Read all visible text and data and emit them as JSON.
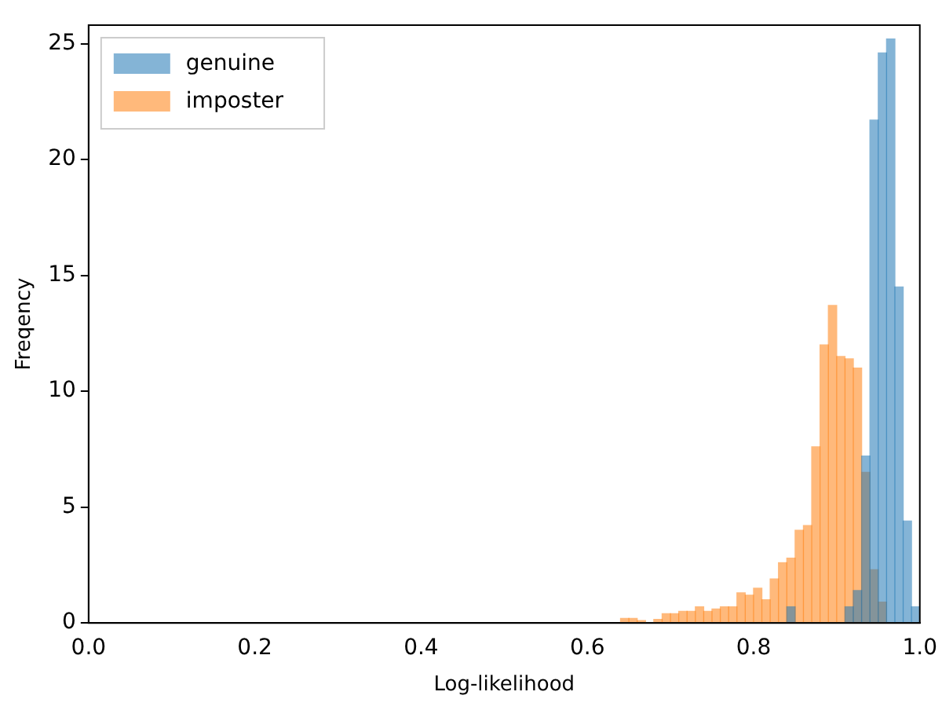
{
  "chart_data": {
    "type": "histogram",
    "xlabel": "Log-likelihood",
    "ylabel": "Freqency",
    "bins": [
      0.64,
      0.65,
      0.66,
      0.67,
      0.68,
      0.69,
      0.7,
      0.71,
      0.72,
      0.73,
      0.74,
      0.75,
      0.76,
      0.77,
      0.78,
      0.79,
      0.8,
      0.81,
      0.82,
      0.83,
      0.84,
      0.85,
      0.86,
      0.87,
      0.88,
      0.89,
      0.9,
      0.91,
      0.92,
      0.93,
      0.94,
      0.95,
      0.96,
      0.97,
      0.98,
      0.99,
      1.0
    ],
    "series": [
      {
        "name": "genuine",
        "color": "#1f77b4",
        "values": [
          0,
          0,
          0,
          0,
          0,
          0,
          0,
          0,
          0,
          0,
          0,
          0,
          0,
          0,
          0,
          0,
          0,
          0,
          0,
          0,
          0.7,
          0,
          0,
          0,
          0,
          0,
          0,
          0.7,
          1.4,
          7.2,
          21.7,
          24.6,
          25.2,
          14.5,
          4.4,
          0.7
        ]
      },
      {
        "name": "imposter",
        "color": "#ff7f0e",
        "values": [
          0.2,
          0.2,
          0.1,
          0,
          0.15,
          0.4,
          0.4,
          0.5,
          0.5,
          0.7,
          0.5,
          0.6,
          0.7,
          0.7,
          1.3,
          1.2,
          1.5,
          1.0,
          1.9,
          2.6,
          2.8,
          4.0,
          4.2,
          7.6,
          12.0,
          13.7,
          11.5,
          11.4,
          11.0,
          6.5,
          2.3,
          0.9,
          0,
          0,
          0,
          0
        ]
      }
    ],
    "xlim": [
      0,
      1
    ],
    "xticks": [
      {
        "value": 0,
        "label": "0.0"
      },
      {
        "value": 0.2,
        "label": "0.2"
      },
      {
        "value": 0.4,
        "label": "0.4"
      },
      {
        "value": 0.6,
        "label": "0.6"
      },
      {
        "value": 0.8,
        "label": "0.8"
      },
      {
        "value": 1,
        "label": "1.0"
      }
    ],
    "ylim": [
      0,
      25.8
    ],
    "yticks": [
      0,
      5,
      10,
      15,
      20,
      25
    ],
    "grid": false,
    "legend": "top left"
  }
}
